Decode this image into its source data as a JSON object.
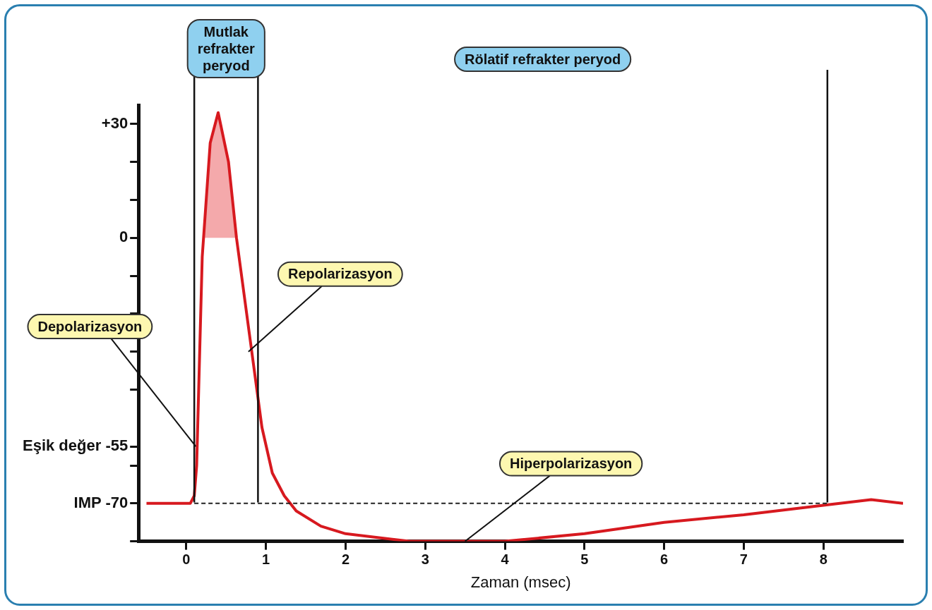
{
  "chart_data": {
    "type": "line",
    "xlabel": "Zaman (msec)",
    "xlim": [
      -0.6,
      9
    ],
    "xticks": [
      0,
      1,
      2,
      3,
      4,
      5,
      6,
      7,
      8
    ],
    "ylim": [
      -80,
      35
    ],
    "yticks": [
      {
        "value": 30,
        "label": "+30"
      },
      {
        "value": 20,
        "label": null
      },
      {
        "value": 10,
        "label": null
      },
      0,
      {
        "value": -10,
        "label": null
      },
      {
        "value": -20,
        "label": null
      },
      {
        "value": -30,
        "label": null
      },
      {
        "value": -40,
        "label": null
      },
      {
        "value": -55,
        "label": "Eşik değer -55"
      },
      {
        "value": -60,
        "label": null
      },
      {
        "value": -70,
        "label": "IMP -70"
      },
      {
        "value": -80,
        "label": null
      }
    ],
    "series": [
      {
        "type": "line",
        "color": "#d7191f",
        "x": [
          -0.5,
          0.05,
          0.1,
          0.13,
          0.2,
          0.3,
          0.4,
          0.53,
          0.63,
          0.79,
          0.95,
          1.08,
          1.23,
          1.38,
          1.69,
          2,
          2.8,
          4,
          5,
          6,
          7,
          8,
          8.6,
          9
        ],
        "values": [
          -70,
          -70,
          -68,
          -60,
          -5,
          25,
          33,
          20,
          0,
          -25,
          -50,
          -62,
          -68,
          -72,
          -76,
          -78,
          -80,
          -80,
          -78,
          -75,
          -73,
          -70.5,
          -69,
          -70
        ]
      },
      {
        "type": "area",
        "color": "#f4a9ab",
        "x": [
          0.21,
          0.3,
          0.4,
          0.53,
          0.62
        ],
        "values": [
          0,
          25,
          33,
          20,
          0
        ]
      }
    ],
    "ref_lines": [
      {
        "axis": "y",
        "value": -70,
        "line_style": "dashed",
        "color": "#222222"
      },
      {
        "axis": "x",
        "value": 0.1,
        "color": "#111111"
      },
      {
        "axis": "x",
        "value": 0.9,
        "color": "#111111"
      },
      {
        "axis": "x",
        "value": 8.05,
        "color": "#111111"
      }
    ],
    "annotations": [
      "Mutlak refrakter peryod",
      "Rölatif refrakter peryod",
      {
        "text": "Depolarizasyon",
        "x": 0.12,
        "y": -55
      },
      {
        "text": "Repolarizasyon",
        "x": 0.78,
        "y": -30
      },
      {
        "text": "Hiperpolarizasyon",
        "x": 3.5,
        "y": -80
      }
    ],
    "grid": false,
    "legend": false,
    "marker": "none",
    "line_style": "solid"
  }
}
